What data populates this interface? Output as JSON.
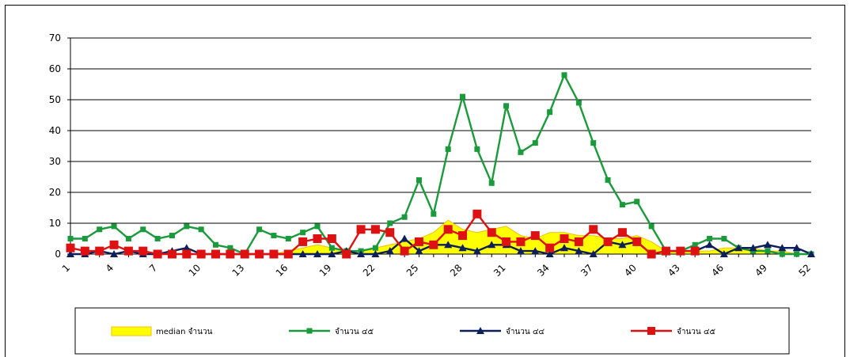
{
  "chart_data": {
    "type": "line",
    "x": [
      1,
      2,
      3,
      4,
      5,
      6,
      7,
      8,
      9,
      10,
      11,
      12,
      13,
      14,
      15,
      16,
      17,
      18,
      19,
      20,
      21,
      22,
      23,
      24,
      25,
      26,
      27,
      28,
      29,
      30,
      31,
      32,
      33,
      34,
      35,
      36,
      37,
      38,
      39,
      40,
      41,
      42,
      43,
      44,
      45,
      46,
      47,
      48,
      49,
      50,
      51,
      52
    ],
    "x_tick_labels": [
      "1",
      "4",
      "7",
      "10",
      "13",
      "16",
      "19",
      "22",
      "25",
      "28",
      "31",
      "34",
      "37",
      "40",
      "43",
      "46",
      "49",
      "52"
    ],
    "ylim": [
      0,
      70
    ],
    "y_ticks": [
      0,
      10,
      20,
      30,
      40,
      50,
      60,
      70
    ],
    "grid": "horizontal",
    "legend_position": "bottom",
    "colors": {
      "median_fill": "#ffff00",
      "median_edge": "#f0c000",
      "green": "#1a9a3a",
      "navy": "#0d1f5a",
      "red": "#dd1111"
    },
    "series": [
      {
        "name": "median จำนวน",
        "style": "area",
        "color": "#ffff00",
        "values": [
          0,
          0,
          0,
          0,
          0,
          0,
          0,
          0,
          0,
          0,
          0,
          0,
          0,
          0,
          0,
          1,
          2,
          3,
          2,
          1,
          1,
          2,
          3,
          4,
          5,
          7,
          11,
          8,
          7,
          8,
          9,
          6,
          5,
          7,
          7,
          6,
          6,
          5,
          5,
          6,
          4,
          1,
          1,
          1,
          1,
          2,
          2,
          2,
          1,
          1,
          0,
          0
        ]
      },
      {
        "name": "จำนวน ๔๕",
        "style": "line-square",
        "color": "#1a9a3a",
        "values": [
          5,
          5,
          8,
          9,
          5,
          8,
          5,
          6,
          9,
          8,
          3,
          2,
          0,
          8,
          6,
          5,
          7,
          9,
          2,
          1,
          1,
          2,
          10,
          12,
          24,
          13,
          34,
          51,
          34,
          23,
          48,
          33,
          36,
          46,
          58,
          49,
          36,
          24,
          16,
          17,
          9,
          1,
          1,
          3,
          5,
          5,
          2,
          1,
          1,
          0,
          0,
          0
        ]
      },
      {
        "name": "จำนวน ๔๔",
        "style": "line-triangle",
        "color": "#0d1f5a",
        "values": [
          0,
          0,
          1,
          0,
          1,
          0,
          0,
          1,
          2,
          0,
          0,
          0,
          0,
          0,
          0,
          0,
          0,
          0,
          0,
          1,
          0,
          0,
          1,
          5,
          1,
          3,
          3,
          2,
          1,
          3,
          3,
          1,
          1,
          0,
          2,
          1,
          0,
          4,
          3,
          4,
          0,
          1,
          1,
          1,
          3,
          0,
          2,
          2,
          3,
          2,
          2,
          0
        ]
      },
      {
        "name": "จำนวน ๔๕",
        "style": "line-square",
        "color": "#dd1111",
        "values": [
          2,
          1,
          1,
          3,
          1,
          1,
          0,
          0,
          0,
          0,
          0,
          0,
          0,
          0,
          0,
          0,
          4,
          5,
          5,
          0,
          8,
          8,
          7,
          1,
          4,
          3,
          8,
          6,
          13,
          7,
          4,
          4,
          6,
          2,
          5,
          4,
          8,
          4,
          7,
          4,
          0,
          1,
          1,
          1,
          null,
          null,
          null,
          null,
          null,
          null,
          null,
          null
        ]
      }
    ]
  }
}
